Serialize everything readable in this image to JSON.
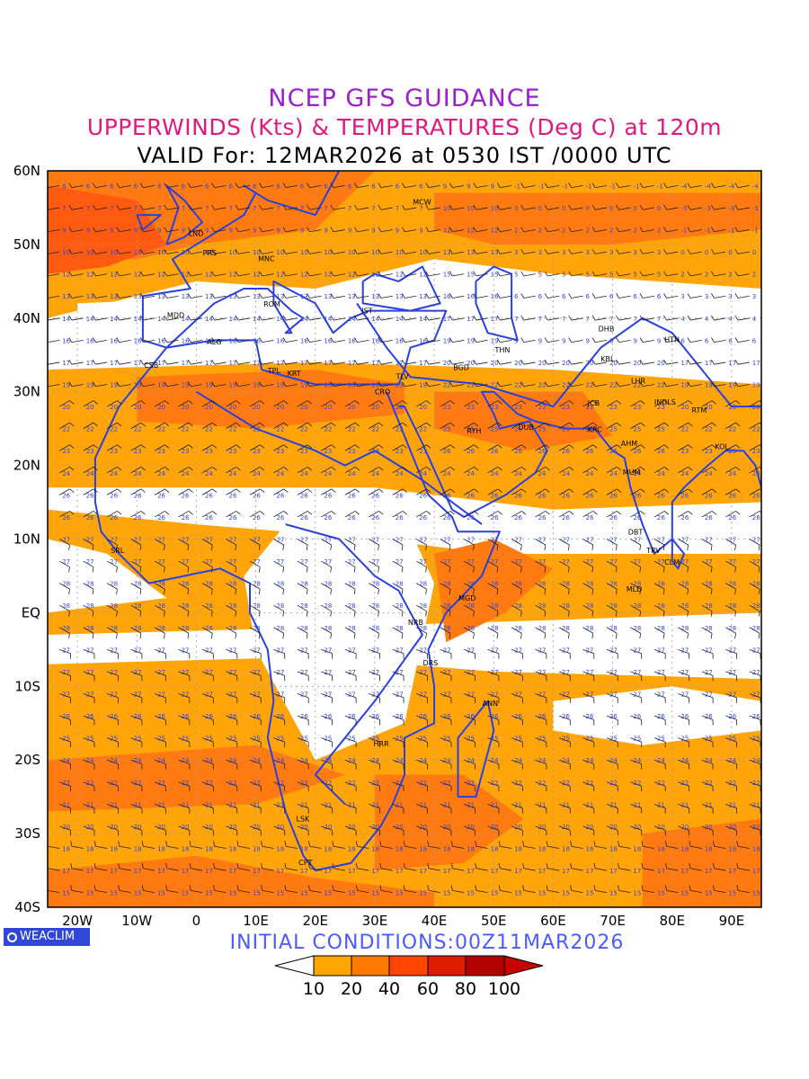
{
  "header": {
    "title": "NCEP GFS GUIDANCE",
    "subtitle": "UPPERWINDS (Kts) & TEMPERATURES (Deg C) at 120m",
    "valid": "VALID For: 12MAR2026 at 0530 IST /0000 UTC"
  },
  "footer": {
    "logo": "WEACLIM",
    "initial_conditions": "INITIAL CONDITIONS:00Z11MAR2026"
  },
  "map": {
    "lat_labels": [
      "60N",
      "50N",
      "40N",
      "30N",
      "20N",
      "10N",
      "EQ",
      "10S",
      "20S",
      "30S",
      "40S"
    ],
    "lon_labels": [
      "20W",
      "10W",
      "0",
      "10E",
      "20E",
      "30E",
      "40E",
      "50E",
      "60E",
      "70E",
      "80E",
      "90E"
    ],
    "stations": [
      {
        "code": "MCW",
        "lon": 37.6,
        "lat": 55.8
      },
      {
        "code": "LND",
        "lon": -0.1,
        "lat": 51.5
      },
      {
        "code": "PRS",
        "lon": 2.3,
        "lat": 48.9
      },
      {
        "code": "MNC",
        "lon": 11.6,
        "lat": 48.1
      },
      {
        "code": "ROM",
        "lon": 12.5,
        "lat": 41.9
      },
      {
        "code": "MDD",
        "lon": -3.7,
        "lat": 40.4
      },
      {
        "code": "IST",
        "lon": 29.0,
        "lat": 41.0
      },
      {
        "code": "ALG",
        "lon": 3.0,
        "lat": 36.8
      },
      {
        "code": "CSB",
        "lon": -7.6,
        "lat": 33.6
      },
      {
        "code": "TPL",
        "lon": 13.2,
        "lat": 32.9
      },
      {
        "code": "KRT",
        "lon": 16.5,
        "lat": 32.5
      },
      {
        "code": "THN",
        "lon": 51.4,
        "lat": 35.7
      },
      {
        "code": "DHB",
        "lon": 68.8,
        "lat": 38.6
      },
      {
        "code": "HTN",
        "lon": 79.9,
        "lat": 37.1
      },
      {
        "code": "KBL",
        "lon": 69.2,
        "lat": 34.5
      },
      {
        "code": "BGD",
        "lon": 44.4,
        "lat": 33.3
      },
      {
        "code": "TLV",
        "lon": 34.8,
        "lat": 32.1
      },
      {
        "code": "CRO",
        "lon": 31.2,
        "lat": 30.0
      },
      {
        "code": "LHR",
        "lon": 74.3,
        "lat": 31.5
      },
      {
        "code": "JCB",
        "lon": 67.0,
        "lat": 28.5
      },
      {
        "code": "INDLS",
        "lon": 78.2,
        "lat": 28.6
      },
      {
        "code": "RTM",
        "lon": 84.5,
        "lat": 27.5
      },
      {
        "code": "RYH",
        "lon": 46.7,
        "lat": 24.7
      },
      {
        "code": "DUB",
        "lon": 55.3,
        "lat": 25.2
      },
      {
        "code": "KRC",
        "lon": 67.0,
        "lat": 24.9
      },
      {
        "code": "AHM",
        "lon": 72.6,
        "lat": 23.0
      },
      {
        "code": "KOL",
        "lon": 88.4,
        "lat": 22.6
      },
      {
        "code": "MUM",
        "lon": 72.9,
        "lat": 19.1
      },
      {
        "code": "DBT",
        "lon": 73.8,
        "lat": 11.0
      },
      {
        "code": "TRV",
        "lon": 76.9,
        "lat": 8.5
      },
      {
        "code": "CLM",
        "lon": 79.9,
        "lat": 6.9
      },
      {
        "code": "SRL",
        "lon": -13.2,
        "lat": 8.5
      },
      {
        "code": "MGD",
        "lon": 45.3,
        "lat": 2.0
      },
      {
        "code": "MLD",
        "lon": 73.5,
        "lat": 3.2
      },
      {
        "code": "NRB",
        "lon": 36.8,
        "lat": -1.3
      },
      {
        "code": "DRS",
        "lon": 39.3,
        "lat": -6.8
      },
      {
        "code": "ANN",
        "lon": 49.3,
        "lat": -12.3
      },
      {
        "code": "HRR",
        "lon": 31.0,
        "lat": -17.8
      },
      {
        "code": "LSK",
        "lon": 18.0,
        "lat": -28.0
      },
      {
        "code": "CPT",
        "lon": 18.4,
        "lat": -33.9
      }
    ]
  },
  "colorbar": {
    "labels": [
      "10",
      "20",
      "40",
      "60",
      "80",
      "100"
    ],
    "colors": [
      "#ffffff",
      "#ffa500",
      "#ff7b00",
      "#ff4500",
      "#dd1b00",
      "#b30000",
      "#c40000"
    ]
  },
  "colors": {
    "coast": "#2a40e0",
    "temp_text": "#3346e0",
    "shade_light": "#ffa50a",
    "shade_mid": "#ff7a10",
    "shade_dark": "#ff5a10"
  }
}
